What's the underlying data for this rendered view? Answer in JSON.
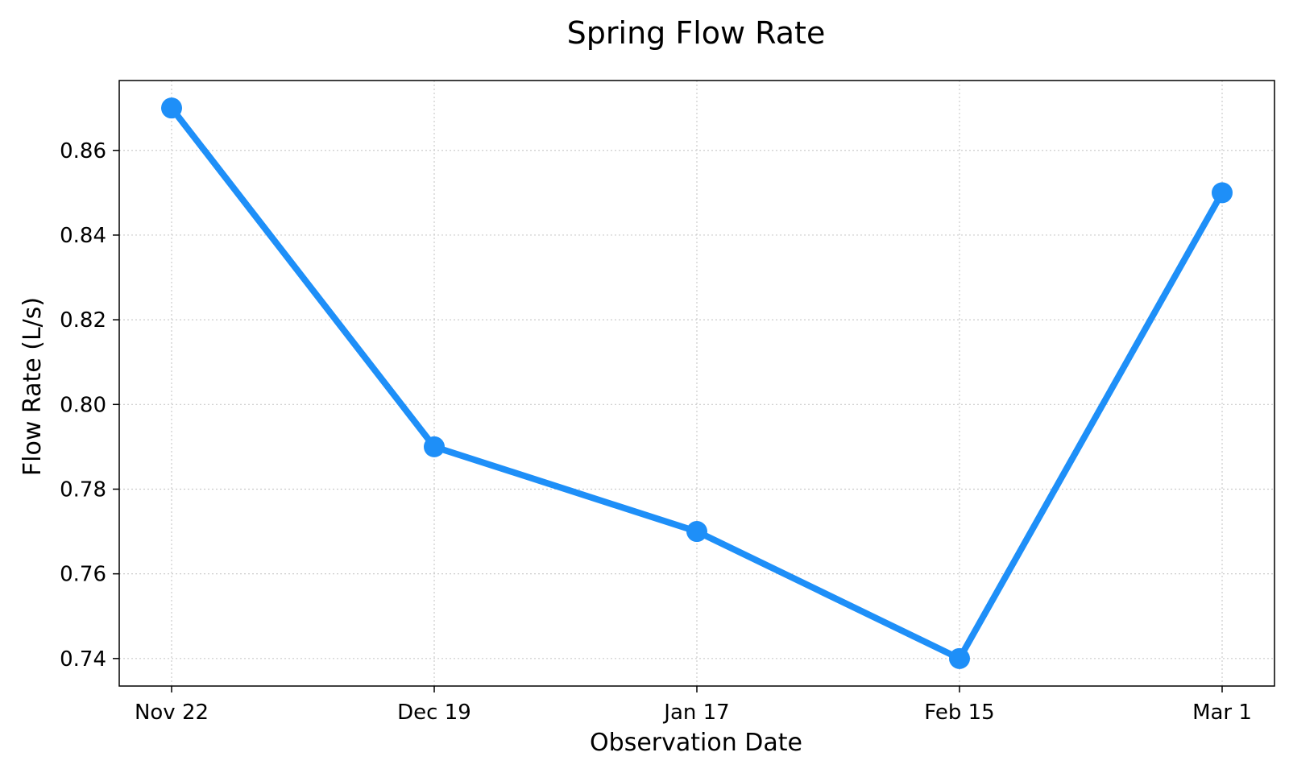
{
  "chart_data": {
    "type": "line",
    "title": "Spring Flow Rate",
    "xlabel": "Observation Date",
    "ylabel": "Flow Rate (L/s)",
    "categories": [
      "Nov 22",
      "Dec 19",
      "Jan 17",
      "Feb 15",
      "Mar 1"
    ],
    "series": [
      {
        "values": [
          0.87,
          0.79,
          0.77,
          0.74,
          0.85
        ],
        "color": "#1e8ff8"
      }
    ],
    "ylim": [
      0.7335,
      0.8765
    ],
    "yticks": [
      "0.74",
      "0.76",
      "0.78",
      "0.80",
      "0.82",
      "0.84",
      "0.86"
    ],
    "grid": true,
    "legend": "none"
  }
}
